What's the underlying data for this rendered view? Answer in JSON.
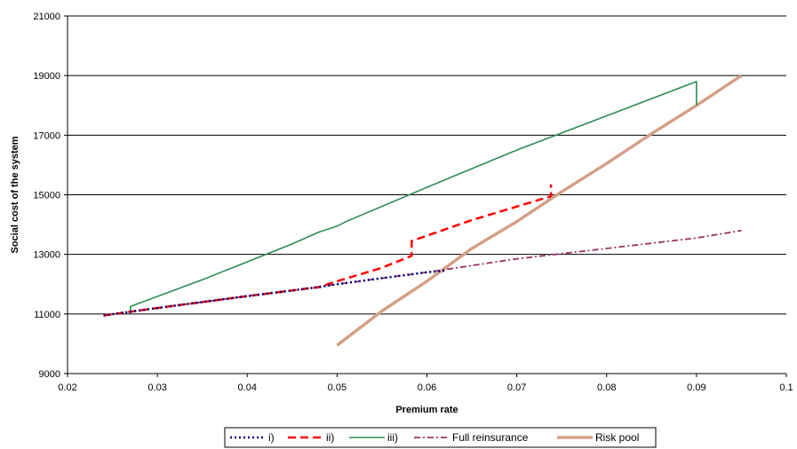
{
  "chart_data": {
    "type": "line",
    "title": "",
    "xlabel": "Premium rate",
    "ylabel": "Social cost of the system",
    "xlim": [
      0.02,
      0.1
    ],
    "ylim": [
      9000,
      21000
    ],
    "x_ticks": [
      "0.02",
      "0.03",
      "0.04",
      "0.05",
      "0.06",
      "0.07",
      "0.08",
      "0.09",
      "0.1"
    ],
    "y_ticks": [
      "9000",
      "11000",
      "13000",
      "15000",
      "17000",
      "19000",
      "21000"
    ],
    "grid": "horizontal",
    "legend_position": "bottom",
    "series": [
      {
        "name": "i)",
        "color": "#000080",
        "style": "dotted",
        "points": [
          [
            0.024,
            10950
          ],
          [
            0.03,
            11200
          ],
          [
            0.04,
            11600
          ],
          [
            0.048,
            11900
          ],
          [
            0.05,
            12000
          ],
          [
            0.055,
            12200
          ],
          [
            0.06,
            12400
          ],
          [
            0.062,
            12450
          ]
        ]
      },
      {
        "name": "ii)",
        "color": "#ff0000",
        "style": "dashed",
        "points": [
          [
            0.024,
            10950
          ],
          [
            0.03,
            11200
          ],
          [
            0.04,
            11600
          ],
          [
            0.048,
            11900
          ],
          [
            0.05,
            12100
          ],
          [
            0.055,
            12550
          ],
          [
            0.0583,
            12950
          ],
          [
            0.0583,
            13450
          ],
          [
            0.065,
            14150
          ],
          [
            0.0738,
            14950
          ],
          [
            0.0738,
            15350
          ]
        ]
      },
      {
        "name": "iii)",
        "color": "#2e8b57",
        "style": "solid",
        "points": [
          [
            0.027,
            11000
          ],
          [
            0.027,
            11250
          ],
          [
            0.035,
            12150
          ],
          [
            0.045,
            13350
          ],
          [
            0.048,
            13750
          ],
          [
            0.05,
            13950
          ],
          [
            0.051,
            14100
          ],
          [
            0.06,
            15250
          ],
          [
            0.07,
            16500
          ],
          [
            0.08,
            17650
          ],
          [
            0.09,
            18800
          ],
          [
            0.09,
            18000
          ]
        ]
      },
      {
        "name": "Full reinsurance",
        "color": "#993366",
        "style": "dash-dot",
        "points": [
          [
            0.024,
            10950
          ],
          [
            0.03,
            11200
          ],
          [
            0.04,
            11600
          ],
          [
            0.05,
            12000
          ],
          [
            0.055,
            12200
          ],
          [
            0.06,
            12400
          ],
          [
            0.07,
            12850
          ],
          [
            0.08,
            13200
          ],
          [
            0.09,
            13550
          ],
          [
            0.095,
            13800
          ]
        ]
      },
      {
        "name": "Risk pool",
        "color": "#d4a088",
        "style": "solid-thick",
        "points": [
          [
            0.05,
            9950
          ],
          [
            0.055,
            11100
          ],
          [
            0.06,
            12100
          ],
          [
            0.065,
            13200
          ],
          [
            0.07,
            14100
          ],
          [
            0.075,
            15100
          ],
          [
            0.08,
            16050
          ],
          [
            0.085,
            17050
          ],
          [
            0.09,
            18000
          ],
          [
            0.095,
            19000
          ]
        ]
      }
    ]
  }
}
